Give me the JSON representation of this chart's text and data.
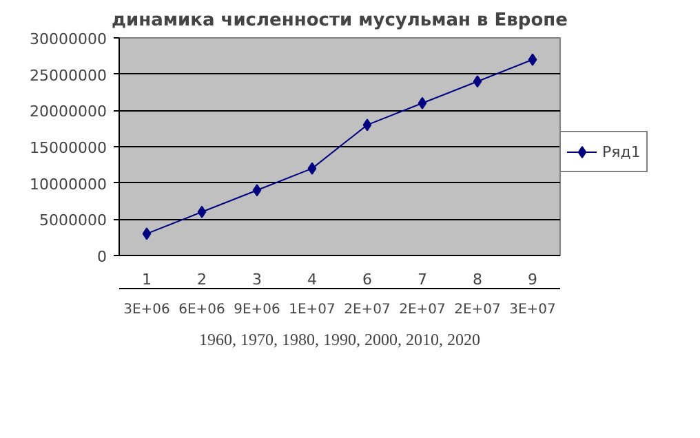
{
  "chart_data": {
    "type": "line",
    "title": "динамика численности мусульман в Европе",
    "xlabel": "1960, 1970, 1980, 1990, 2000, 2010, 2020",
    "categories": [
      "1",
      "2",
      "3",
      "4",
      "6",
      "7",
      "8",
      "9"
    ],
    "series": [
      {
        "name": "Ряд1",
        "color": "#000080",
        "values": [
          3000000,
          6000000,
          9000000,
          12000000,
          18000000,
          21000000,
          24000000,
          27000000
        ],
        "value_labels": [
          "3E+06",
          "6E+06",
          "9E+06",
          "1E+07",
          "2E+07",
          "2E+07",
          "2E+07",
          "3E+07"
        ]
      }
    ],
    "ylim": [
      0,
      30000000
    ],
    "yticks": [
      0,
      5000000,
      10000000,
      15000000,
      20000000,
      25000000,
      30000000
    ],
    "grid": "y",
    "legend": "right",
    "marker": "diamond",
    "line_style": "solid"
  }
}
